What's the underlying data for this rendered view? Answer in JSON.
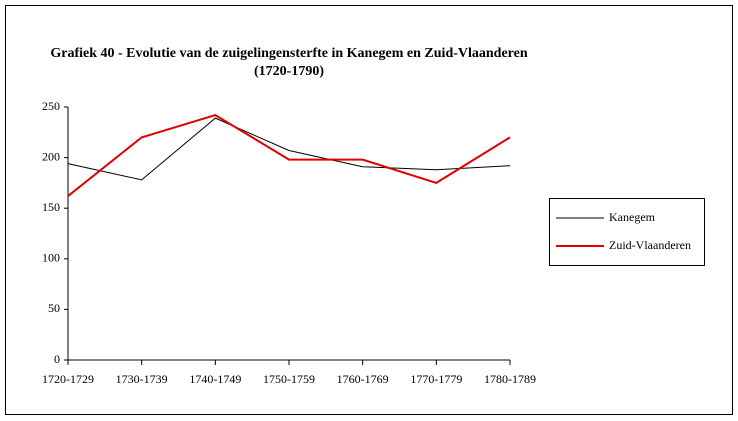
{
  "chart_data": {
    "type": "line",
    "title": "Grafiek 40 - Evolutie van de zuigelingensterfte in Kanegem en Zuid-Vlaanderen",
    "subtitle": "(1720-1790)",
    "categories": [
      "1720-1729",
      "1730-1739",
      "1740-1749",
      "1750-1759",
      "1760-1769",
      "1770-1779",
      "1780-1789"
    ],
    "series": [
      {
        "name": "Kanegem",
        "color": "#000000",
        "values": [
          194,
          178,
          239,
          207,
          191,
          188,
          192
        ]
      },
      {
        "name": "Zuid-Vlaanderen",
        "color": "#e00000",
        "values": [
          162,
          220,
          242,
          198,
          198,
          175,
          220
        ]
      }
    ],
    "ylim": [
      0,
      250
    ],
    "yticks": [
      0,
      50,
      100,
      150,
      200,
      250
    ],
    "legend": "right"
  }
}
